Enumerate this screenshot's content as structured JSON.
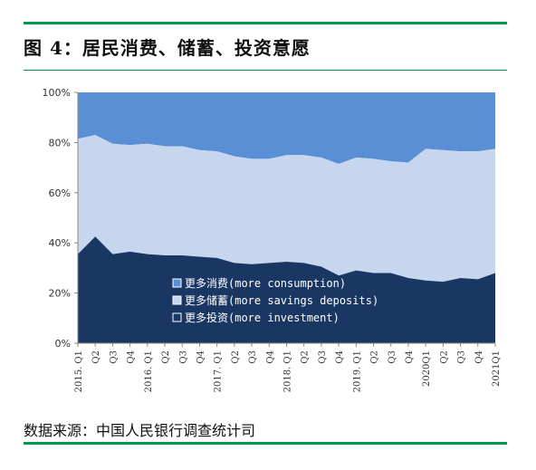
{
  "figure": {
    "title": "图 4：居民消费、储蓄、投资意愿",
    "source": "数据来源：中国人民银行调查统计司"
  },
  "colors": {
    "consumption": "#5a8fd6",
    "savings": "#c5d6ee",
    "investment": "#1a3764",
    "rule": "#00994d",
    "legend_text": "#ffffff"
  },
  "chart_data": {
    "type": "area",
    "stacked": true,
    "title": "",
    "xlabel": "",
    "ylabel": "",
    "ylim": [
      0,
      100
    ],
    "y_ticks": [
      "0%",
      "20%",
      "40%",
      "60%",
      "80%",
      "100%"
    ],
    "x_tick_labels": [
      "2015. Q1",
      "Q2",
      "Q3",
      "Q4",
      "2016. Q1",
      "Q2",
      "Q3",
      "Q4",
      "2017. Q1",
      "Q2",
      "Q3",
      "Q4",
      "2018. Q1",
      "Q2",
      "Q3",
      "Q4",
      "2019. Q1",
      "Q2",
      "Q3",
      "Q4",
      "2020Q1",
      "Q2",
      "Q3",
      "Q4",
      "2021Q1"
    ],
    "legend_position": "lower-center",
    "series": [
      {
        "name": "更多消费(more consumption)",
        "values": [
          18.5,
          17,
          20.5,
          21,
          20.5,
          21.5,
          21.5,
          23,
          23.5,
          25.5,
          26.5,
          26.5,
          25,
          25,
          26,
          28.5,
          26,
          26.5,
          27.5,
          28,
          22.5,
          23,
          23.5,
          23.5,
          22.5
        ]
      },
      {
        "name": "更多储蓄(more savings deposits)",
        "values": [
          46,
          40.5,
          44,
          42.5,
          44,
          43.5,
          43.5,
          42.5,
          42.5,
          42.5,
          42,
          41.5,
          42.5,
          43,
          43.5,
          44.5,
          45,
          45.5,
          44.5,
          46,
          52.5,
          52.5,
          50.5,
          51,
          49.5
        ]
      },
      {
        "name": "更多投资(more investment)",
        "values": [
          35.5,
          42.5,
          35.5,
          36.5,
          35.5,
          35,
          35,
          34.5,
          34,
          32,
          31.5,
          32,
          32.5,
          32,
          30.5,
          27,
          29,
          28,
          28,
          26,
          25,
          24.5,
          26,
          25.5,
          28
        ]
      }
    ]
  }
}
